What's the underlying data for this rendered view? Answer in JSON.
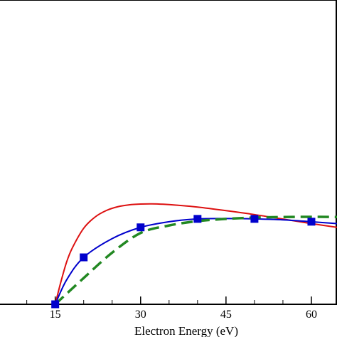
{
  "chart_data": {
    "type": "line",
    "xlabel": "Electron Energy (eV)",
    "ylabel": "",
    "xlim": [
      5.3,
      64.5
    ],
    "ylim": [
      0,
      1.0
    ],
    "x_ticks": [
      15,
      30,
      45,
      60
    ],
    "grid": false,
    "legend": "none",
    "series": [
      {
        "color": "#dd1111",
        "style": "solid",
        "marker": "none",
        "x": [
          15,
          16,
          17,
          18,
          20,
          22,
          24,
          26,
          28,
          30,
          32,
          34,
          36,
          40,
          45,
          50,
          55,
          60,
          64.5
        ],
        "y": [
          0.0,
          0.12,
          0.225,
          0.3,
          0.405,
          0.465,
          0.5,
          0.52,
          0.53,
          0.534,
          0.535,
          0.533,
          0.529,
          0.518,
          0.499,
          0.478,
          0.454,
          0.43,
          0.41
        ]
      },
      {
        "color": "#0000cc",
        "style": "solid",
        "marker": "square",
        "x": [
          15,
          17,
          20,
          25,
          30,
          35,
          40,
          45,
          50,
          55,
          60,
          64.5
        ],
        "y": [
          0.0,
          0.13,
          0.25,
          0.35,
          0.41,
          0.44,
          0.455,
          0.457,
          0.455,
          0.45,
          0.44,
          0.43
        ],
        "marker_x": [
          15,
          20,
          30,
          40,
          50,
          60
        ],
        "marker_y": [
          0.0,
          0.25,
          0.41,
          0.455,
          0.455,
          0.44
        ]
      },
      {
        "color": "#228822",
        "style": "dashed",
        "marker": "none",
        "x": [
          15,
          20,
          25,
          30,
          35,
          40,
          45,
          50,
          55,
          60,
          64.5
        ],
        "y": [
          0.0,
          0.14,
          0.275,
          0.38,
          0.42,
          0.443,
          0.455,
          0.462,
          0.465,
          0.466,
          0.465
        ]
      }
    ]
  }
}
